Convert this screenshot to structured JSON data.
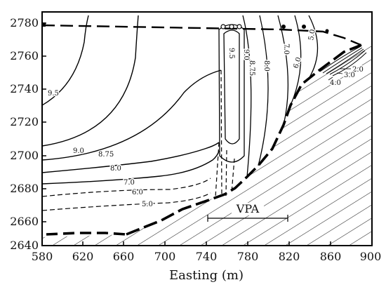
{
  "figure": {
    "y_ticks": [
      "2780",
      "2760",
      "2740",
      "2720",
      "2700",
      "2680",
      "2660",
      "2640"
    ],
    "x_ticks": [
      "580",
      "620",
      "660",
      "700",
      "740",
      "780",
      "820",
      "860",
      "900"
    ],
    "x_axis_title": "Easting (m)",
    "contour_labels": [
      "9.5",
      "9.0",
      "8.75",
      "8.0",
      "7.0",
      "6.0",
      "5.0",
      "9.0",
      "9.5",
      "8.75",
      "8.0",
      "7.0",
      "6.0",
      "5.0",
      "2.0",
      "3.0",
      "4.0"
    ],
    "zone_label": "VPA"
  }
}
